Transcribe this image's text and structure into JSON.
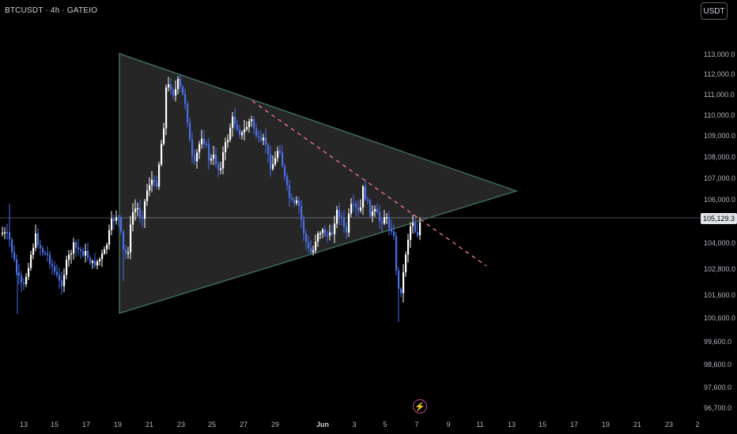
{
  "header": {
    "symbol_label": "BTCUSDT · 4h · GATEIO"
  },
  "toolbar": {
    "currency_label": "USDT"
  },
  "price_axis": {
    "labels": [
      "113,000.0",
      "112,000.0",
      "111,000.0",
      "110,000.0",
      "109,000.0",
      "108,000.0",
      "107,000.0",
      "106,000.0",
      "104,000.0",
      "102,800.0",
      "101,600.0",
      "100,600.0",
      "99,600.0",
      "98,600.0",
      "97,600.0",
      "96,700.0"
    ],
    "current_price": "105,129.3"
  },
  "time_axis": {
    "labels": [
      "13",
      "15",
      "17",
      "19",
      "21",
      "23",
      "25",
      "27",
      "29",
      "Jun",
      "3",
      "5",
      "7",
      "9",
      "11",
      "13",
      "15",
      "17",
      "19",
      "21",
      "23",
      "2"
    ],
    "bold_label": "Jun"
  },
  "icons": {
    "flash": "lightning-icon"
  },
  "colors": {
    "candle": "#4a6fe8",
    "candle_light": "#ffffff",
    "triangle_stroke": "#3e6b5d",
    "triangle_fill": "rgba(255,255,255,0.15)",
    "trendline": "#e06a80"
  }
}
